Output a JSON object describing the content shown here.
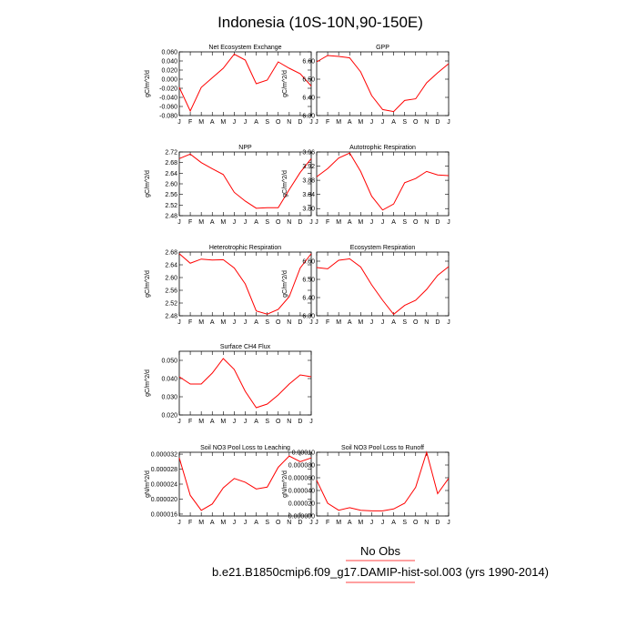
{
  "figure": {
    "title": "Indonesia (10S-10N,90-150E)",
    "legend_obs": "No Obs",
    "legend_case": "b.e21.B1850cmip6.f09_g17.DAMIP-hist-sol.003 (yrs 1990-2014)",
    "colors": {
      "series": "#ff0000",
      "axis": "#000000"
    }
  },
  "chart_data": [
    {
      "type": "line",
      "title": "Net Ecosystem Exchange",
      "ylabel": "gC/m^2/d",
      "x": [
        "J",
        "F",
        "M",
        "A",
        "M",
        "J",
        "J",
        "A",
        "S",
        "O",
        "N",
        "D",
        "J"
      ],
      "ylim": [
        -0.08,
        0.06
      ],
      "yticks": [
        "0.060",
        "0.040",
        "0.020",
        "0.000",
        "-0.020",
        "-0.040",
        "-0.060",
        "-0.080"
      ],
      "yticks_v": [
        0.06,
        0.04,
        0.02,
        0.0,
        -0.02,
        -0.04,
        -0.06,
        -0.08
      ],
      "values": [
        -0.018,
        -0.07,
        -0.018,
        0.003,
        0.024,
        0.055,
        0.042,
        -0.01,
        -0.002,
        0.038,
        0.024,
        0.012,
        -0.015
      ]
    },
    {
      "type": "line",
      "title": "GPP",
      "ylabel": "gC/m^2/d",
      "x": [
        "J",
        "F",
        "M",
        "A",
        "M",
        "J",
        "J",
        "A",
        "S",
        "O",
        "N",
        "D",
        "J"
      ],
      "ylim": [
        6.3,
        6.65
      ],
      "yticks": [
        "6.60",
        "6.50",
        "6.40",
        "6.30"
      ],
      "yticks_v": [
        6.6,
        6.5,
        6.4,
        6.3
      ],
      "values": [
        6.595,
        6.63,
        6.625,
        6.617,
        6.54,
        6.41,
        6.333,
        6.322,
        6.383,
        6.392,
        6.48,
        6.535,
        6.585
      ]
    },
    {
      "type": "line",
      "title": "NPP",
      "ylabel": "gC/m^2/d",
      "x": [
        "J",
        "F",
        "M",
        "A",
        "M",
        "J",
        "J",
        "A",
        "S",
        "O",
        "N",
        "D",
        "J"
      ],
      "ylim": [
        2.48,
        2.72
      ],
      "yticks": [
        "2.72",
        "2.68",
        "2.64",
        "2.60",
        "2.56",
        "2.52",
        "2.48"
      ],
      "yticks_v": [
        2.72,
        2.68,
        2.64,
        2.6,
        2.56,
        2.52,
        2.48
      ],
      "values": [
        2.695,
        2.712,
        2.68,
        2.657,
        2.635,
        2.568,
        2.535,
        2.508,
        2.51,
        2.51,
        2.578,
        2.643,
        2.695
      ]
    },
    {
      "type": "line",
      "title": "Autotrophic Respiration",
      "ylabel": "gC/m^2/d",
      "x": [
        "J",
        "F",
        "M",
        "A",
        "M",
        "J",
        "J",
        "A",
        "S",
        "O",
        "N",
        "D",
        "J"
      ],
      "ylim": [
        3.78,
        3.96
      ],
      "yticks": [
        "3.96",
        "3.92",
        "3.88",
        "3.84",
        "3.80"
      ],
      "yticks_v": [
        3.96,
        3.92,
        3.88,
        3.84,
        3.8
      ],
      "values": [
        3.89,
        3.913,
        3.943,
        3.957,
        3.905,
        3.835,
        3.796,
        3.813,
        3.873,
        3.885,
        3.905,
        3.895,
        3.893
      ]
    },
    {
      "type": "line",
      "title": "Heterotrophic Respiration",
      "ylabel": "gC/m^2/d",
      "x": [
        "J",
        "F",
        "M",
        "A",
        "M",
        "J",
        "J",
        "A",
        "S",
        "O",
        "N",
        "D",
        "J"
      ],
      "ylim": [
        2.48,
        2.68
      ],
      "yticks": [
        "2.68",
        "2.64",
        "2.60",
        "2.56",
        "2.52",
        "2.48"
      ],
      "yticks_v": [
        2.68,
        2.64,
        2.6,
        2.56,
        2.52,
        2.48
      ],
      "values": [
        2.675,
        2.645,
        2.658,
        2.655,
        2.656,
        2.63,
        2.58,
        2.495,
        2.485,
        2.5,
        2.54,
        2.63,
        2.675
      ]
    },
    {
      "type": "line",
      "title": "Ecosystem Respiration",
      "ylabel": "gC/m^2/d",
      "x": [
        "J",
        "F",
        "M",
        "A",
        "M",
        "J",
        "J",
        "A",
        "S",
        "O",
        "N",
        "D",
        "J"
      ],
      "ylim": [
        6.3,
        6.65
      ],
      "yticks": [
        "6.60",
        "6.50",
        "6.40",
        "6.30"
      ],
      "yticks_v": [
        6.6,
        6.5,
        6.4,
        6.3
      ],
      "values": [
        6.565,
        6.558,
        6.605,
        6.613,
        6.568,
        6.47,
        6.385,
        6.308,
        6.357,
        6.385,
        6.445,
        6.522,
        6.57
      ]
    },
    {
      "type": "line",
      "title": "Surface CH4 Flux",
      "ylabel": "gC/m^2/d",
      "x": [
        "J",
        "F",
        "M",
        "A",
        "M",
        "J",
        "J",
        "A",
        "S",
        "O",
        "N",
        "D",
        "J"
      ],
      "ylim": [
        0.02,
        0.055
      ],
      "yticks": [
        "0.050",
        "0.040",
        "0.030",
        "0.020"
      ],
      "yticks_v": [
        0.05,
        0.04,
        0.03,
        0.02
      ],
      "values": [
        0.041,
        0.037,
        0.037,
        0.043,
        0.051,
        0.045,
        0.033,
        0.024,
        0.026,
        0.031,
        0.037,
        0.042,
        0.041
      ]
    },
    {
      "type": "line",
      "title": "Soil NO3 Pool Loss to Leaching",
      "ylabel": "gN/m^2/d",
      "x": [
        "J",
        "F",
        "M",
        "A",
        "M",
        "J",
        "J",
        "A",
        "S",
        "O",
        "N",
        "D",
        "J"
      ],
      "ylim": [
        1.55e-05,
        3.25e-05
      ],
      "yticks": [
        "0.000032",
        "0.000028",
        "0.000024",
        "0.000020",
        "0.000016"
      ],
      "yticks_v": [
        3.2e-05,
        2.8e-05,
        2.4e-05,
        2e-05,
        1.6e-05
      ],
      "values": [
        3.1e-05,
        2.1e-05,
        1.7e-05,
        1.87e-05,
        2.3e-05,
        2.55e-05,
        2.45e-05,
        2.27e-05,
        2.32e-05,
        2.85e-05,
        3.15e-05,
        3e-05,
        3.1e-05
      ]
    },
    {
      "type": "line",
      "title": "Soil NO3 Pool Loss to Runoff",
      "ylabel": "gN/m^2/d",
      "x": [
        "J",
        "F",
        "M",
        "A",
        "M",
        "J",
        "J",
        "A",
        "S",
        "O",
        "N",
        "D",
        "J"
      ],
      "ylim": [
        0.0,
        0.0001
      ],
      "yticks": [
        "0.00010",
        "0.000080",
        "0.000060",
        "0.000040",
        "0.000020",
        "0.000000"
      ],
      "yticks_v": [
        0.0001,
        8e-05,
        6e-05,
        4e-05,
        2e-05,
        0.0
      ],
      "values": [
        5.6e-05,
        2e-05,
        9e-06,
        1.3e-05,
        9e-06,
        8e-06,
        8e-06,
        1.1e-05,
        2e-05,
        4.5e-05,
        0.0001,
        3.5e-05,
        5.9e-05
      ]
    }
  ]
}
